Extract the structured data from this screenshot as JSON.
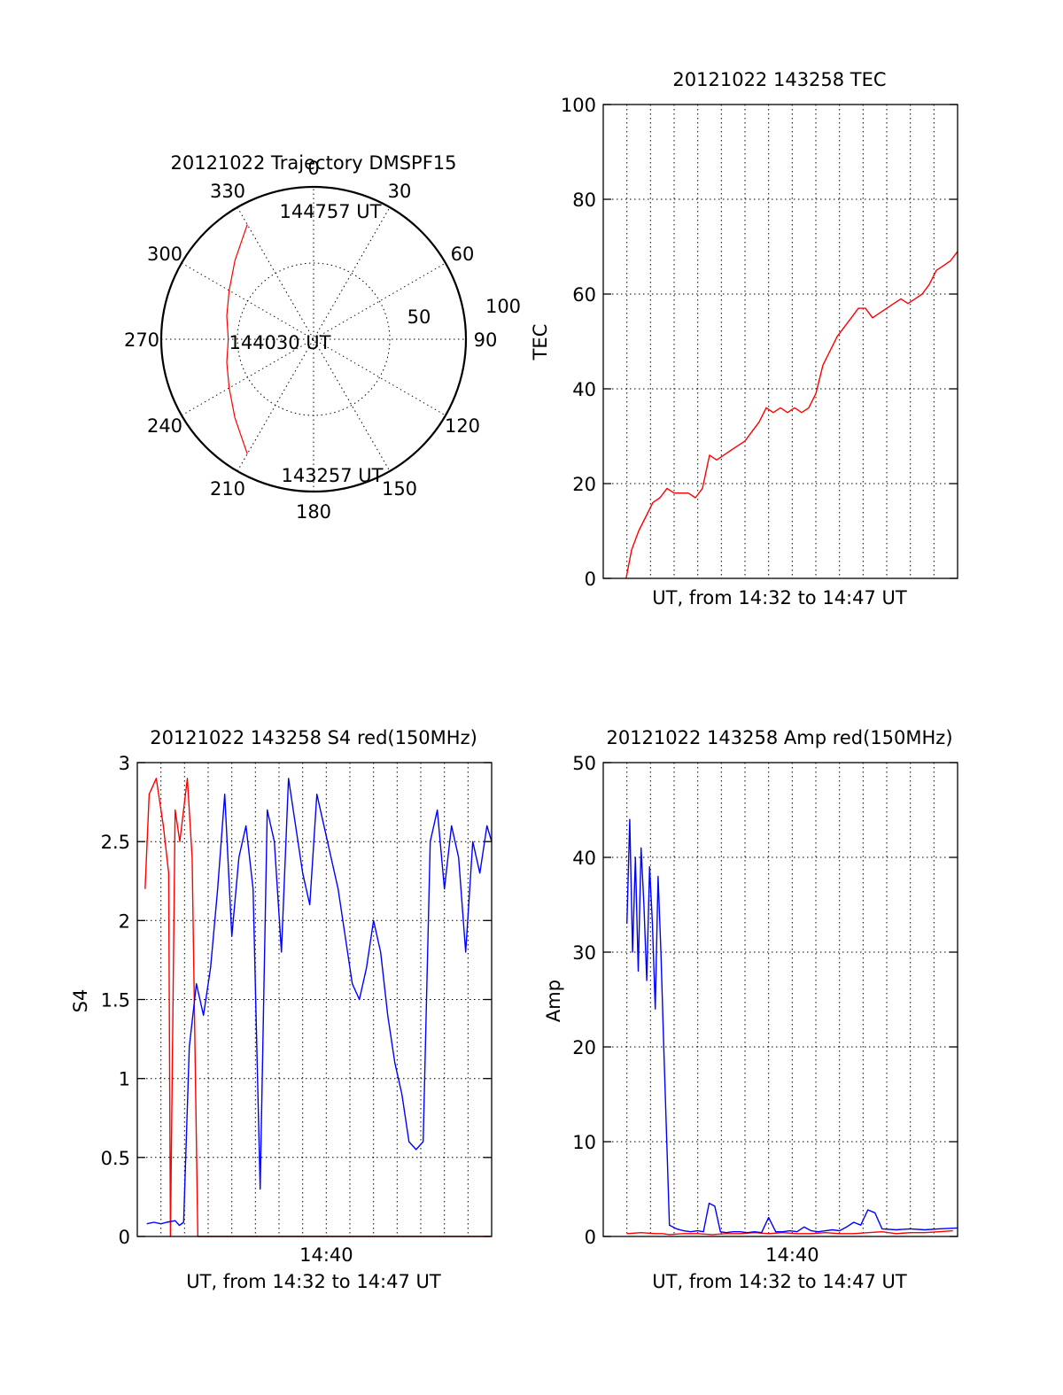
{
  "colors": {
    "red": "#ff0000",
    "blue": "#0000ff",
    "axis": "#000000"
  },
  "chart_data": [
    {
      "id": "trajectory",
      "type": "polar-line",
      "title": "20121022 Trajectory DMSPF15",
      "angle_labels": [
        "0",
        "30",
        "60",
        "90",
        "120",
        "150",
        "180",
        "210",
        "240",
        "270",
        "300",
        "330"
      ],
      "radial_labels": [
        "50",
        "100"
      ],
      "rlim": [
        0,
        100
      ],
      "annotations": [
        "144757 UT",
        "144030 UT",
        "143257 UT"
      ],
      "series": [
        {
          "color": "#ff0000",
          "points": [
            [
              330,
              87
            ],
            [
              315,
              73
            ],
            [
              300,
              64
            ],
            [
              285,
              59
            ],
            [
              270,
              56
            ],
            [
              255,
              59
            ],
            [
              240,
              64
            ],
            [
              225,
              73
            ],
            [
              210,
              87
            ]
          ]
        }
      ]
    },
    {
      "id": "tec",
      "type": "line",
      "title": "20121022 143258 TEC",
      "xlabel": "UT, from 14:32 to 14:47 UT",
      "ylabel": "TEC",
      "xlim": [
        14.5333,
        14.7833
      ],
      "ylim": [
        0,
        100
      ],
      "yticks": [
        "0",
        "20",
        "40",
        "60",
        "80",
        "100"
      ],
      "grid": true,
      "series": [
        {
          "color": "#ff0000",
          "x": [
            14.5494,
            14.5533,
            14.5583,
            14.5633,
            14.5683,
            14.5733,
            14.5783,
            14.5833,
            14.5883,
            14.5933,
            14.5983,
            14.6033,
            14.6083,
            14.6133,
            14.6183,
            14.6233,
            14.6283,
            14.6333,
            14.6383,
            14.6433,
            14.6483,
            14.6533,
            14.6583,
            14.6633,
            14.6683,
            14.6733,
            14.6783,
            14.6833,
            14.6883,
            14.6933,
            14.6983,
            14.7033,
            14.7083,
            14.7133,
            14.7183,
            14.7233,
            14.7283,
            14.7333,
            14.7383,
            14.7433,
            14.7483,
            14.7533,
            14.7583,
            14.7633,
            14.7683,
            14.7733,
            14.7783,
            14.7833
          ],
          "y": [
            0,
            6,
            10,
            13,
            16,
            17,
            19,
            18,
            18,
            18,
            17,
            19,
            26,
            25,
            26,
            27,
            28,
            29,
            31,
            33,
            36,
            35,
            36,
            35,
            36,
            35,
            36,
            39,
            45,
            48,
            51,
            53,
            55,
            57,
            57,
            55,
            56,
            57,
            58,
            59,
            58,
            59,
            60,
            62,
            65,
            66,
            67,
            69
          ]
        }
      ]
    },
    {
      "id": "s4",
      "type": "line",
      "title": "20121022 143258 S4 red(150MHz)",
      "xlabel": "UT, from 14:32 to 14:47 UT",
      "ylabel": "S4",
      "xlim": [
        14.5333,
        14.7833
      ],
      "ylim": [
        0,
        3
      ],
      "yticks": [
        "0",
        "0.5",
        "1",
        "1.5",
        "2",
        "2.5",
        "3"
      ],
      "xticks": [
        "14:40"
      ],
      "grid": true,
      "series": [
        {
          "color": "#ff0000",
          "x": [
            14.5388,
            14.5417,
            14.5467,
            14.5517,
            14.5554,
            14.5567,
            14.56,
            14.5633,
            14.5686,
            14.572,
            14.576,
            14.58,
            14.584,
            14.588,
            14.592,
            14.596,
            14.6,
            14.604,
            14.608,
            14.612,
            14.616,
            14.62,
            14.624,
            14.628,
            14.632,
            14.636,
            14.64,
            14.644,
            14.648,
            14.652,
            14.656,
            14.66,
            14.665,
            14.67,
            14.675,
            14.68,
            14.685,
            14.689,
            14.695,
            14.7,
            14.705,
            14.71,
            14.715,
            14.72,
            14.725,
            14.73,
            14.735,
            14.74,
            14.745,
            14.75,
            14.755,
            14.76,
            14.765,
            14.77,
            14.7733,
            14.7762,
            14.779,
            14.782
          ],
          "y": [
            2.2,
            2.8,
            2.9,
            2.6,
            2.3,
            0.0,
            2.7,
            2.5,
            2.9,
            2.4,
            0.0,
            0.0,
            0.0,
            0.0,
            0.0,
            0.0,
            0.0,
            0.0,
            0.0,
            0.0,
            0.0,
            0.0,
            0.0,
            0.0,
            0.0,
            0.0,
            0.0,
            0.0,
            0.0,
            0.0,
            0.0,
            0.0,
            0.0,
            0.0,
            0.0,
            0.0,
            0.0,
            0.0,
            0.0,
            0.0,
            0.0,
            0.0,
            0.0,
            0.0,
            0.0,
            0.0,
            0.0,
            0.0,
            0.0,
            0.0,
            0.0,
            0.0,
            0.0,
            0.0,
            0.0,
            0.0,
            0.0,
            0.0
          ]
        },
        {
          "color": "#0000ff",
          "x": [
            14.54,
            14.545,
            14.55,
            14.554,
            14.56,
            14.563,
            14.566,
            14.57,
            14.575,
            14.58,
            14.585,
            14.59,
            14.595,
            14.6,
            14.605,
            14.61,
            14.615,
            14.62,
            14.625,
            14.63,
            14.635,
            14.64,
            14.645,
            14.65,
            14.655,
            14.66,
            14.665,
            14.67,
            14.675,
            14.68,
            14.685,
            14.69,
            14.695,
            14.7,
            14.705,
            14.71,
            14.715,
            14.72,
            14.725,
            14.73,
            14.735,
            14.74,
            14.745,
            14.75,
            14.755,
            14.76,
            14.765,
            14.77,
            14.775,
            14.78,
            14.7833
          ],
          "y": [
            0.08,
            0.09,
            0.08,
            0.09,
            0.1,
            0.07,
            0.09,
            1.2,
            1.6,
            1.4,
            1.7,
            2.2,
            2.8,
            1.9,
            2.4,
            2.6,
            2.2,
            0.3,
            2.7,
            2.5,
            1.8,
            2.9,
            2.6,
            2.3,
            2.1,
            2.8,
            2.6,
            2.4,
            2.2,
            1.9,
            1.6,
            1.5,
            1.7,
            2.0,
            1.8,
            1.4,
            1.1,
            0.9,
            0.6,
            0.55,
            0.6,
            2.5,
            2.7,
            2.2,
            2.6,
            2.4,
            1.8,
            2.5,
            2.3,
            2.6,
            2.5
          ]
        }
      ]
    },
    {
      "id": "amp",
      "type": "line",
      "title": "20121022 143258 Amp red(150MHz)",
      "xlabel": "UT, from 14:32 to 14:47 UT",
      "ylabel": "Amp",
      "xlim": [
        14.5333,
        14.7833
      ],
      "ylim": [
        0,
        50
      ],
      "yticks": [
        "0",
        "10",
        "20",
        "30",
        "40",
        "50"
      ],
      "xticks": [
        "14:40"
      ],
      "grid": true,
      "series": [
        {
          "color": "#ff0000",
          "x": [
            14.55,
            14.56,
            14.57,
            14.575,
            14.58,
            14.59,
            14.6,
            14.61,
            14.62,
            14.63,
            14.64,
            14.65,
            14.66,
            14.67,
            14.68,
            14.69,
            14.7,
            14.71,
            14.72,
            14.73,
            14.74,
            14.75,
            14.76,
            14.77,
            14.78
          ],
          "y": [
            0.3,
            0.4,
            0.3,
            0.3,
            0.2,
            0.3,
            0.3,
            0.2,
            0.3,
            0.3,
            0.4,
            0.3,
            0.4,
            0.3,
            0.3,
            0.4,
            0.3,
            0.3,
            0.4,
            0.5,
            0.3,
            0.4,
            0.4,
            0.5,
            0.6
          ]
        },
        {
          "color": "#0000ff",
          "x": [
            14.55,
            14.552,
            14.554,
            14.556,
            14.558,
            14.56,
            14.562,
            14.564,
            14.566,
            14.568,
            14.57,
            14.572,
            14.574,
            14.576,
            14.58,
            14.585,
            14.59,
            14.595,
            14.6,
            14.604,
            14.608,
            14.612,
            14.616,
            14.62,
            14.625,
            14.63,
            14.635,
            14.64,
            14.645,
            14.65,
            14.655,
            14.66,
            14.665,
            14.67,
            14.675,
            14.68,
            14.685,
            14.69,
            14.695,
            14.7,
            14.705,
            14.71,
            14.715,
            14.72,
            14.725,
            14.73,
            14.74,
            14.75,
            14.76,
            14.77,
            14.7833
          ],
          "y": [
            33,
            44,
            30,
            40,
            28,
            41,
            35,
            27,
            39,
            33,
            24,
            38,
            30,
            20,
            1.2,
            0.8,
            0.6,
            0.5,
            0.6,
            0.5,
            3.5,
            3.2,
            0.5,
            0.4,
            0.5,
            0.5,
            0.4,
            0.5,
            0.4,
            2.0,
            0.5,
            0.5,
            0.6,
            0.5,
            1.0,
            0.6,
            0.5,
            0.6,
            0.7,
            0.6,
            1.0,
            1.5,
            1.2,
            2.8,
            2.5,
            0.8,
            0.7,
            0.8,
            0.7,
            0.8,
            0.9
          ]
        }
      ]
    }
  ]
}
